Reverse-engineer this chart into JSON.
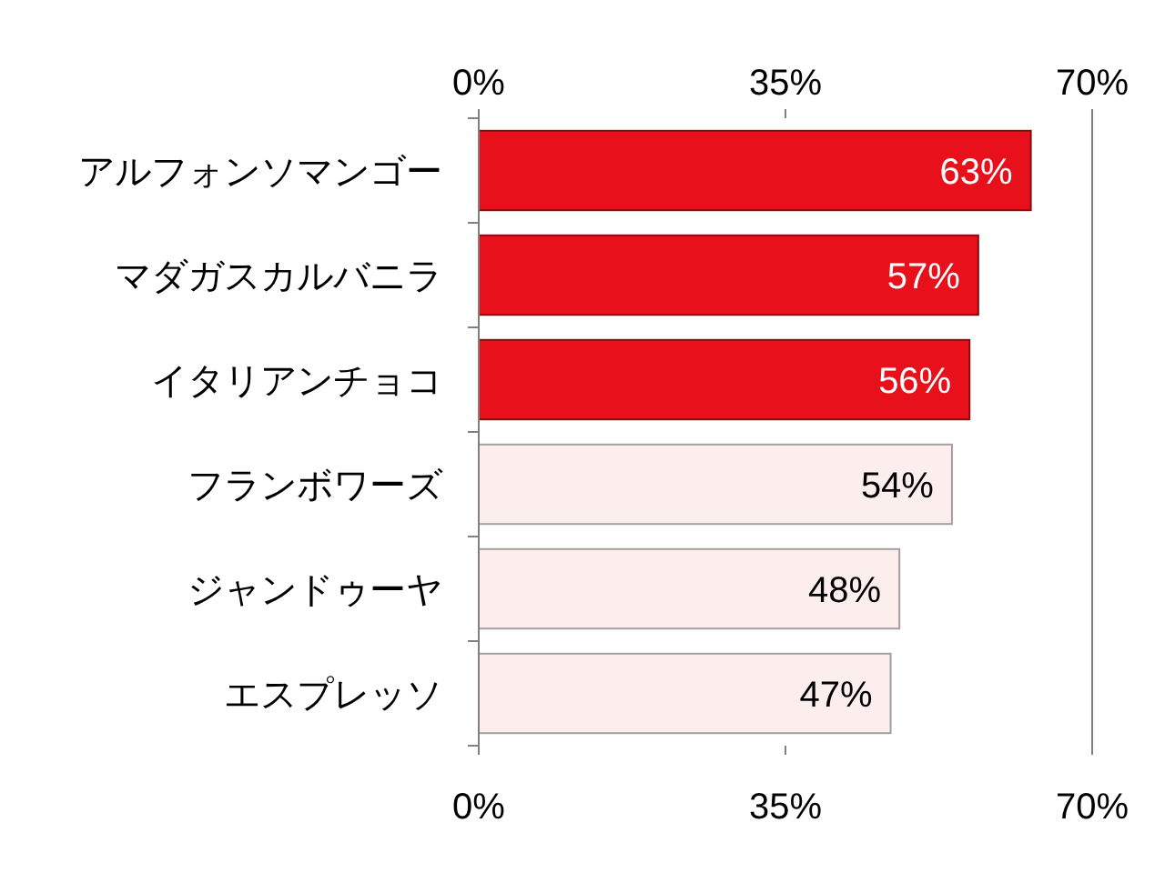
{
  "chart_data": {
    "type": "bar",
    "orientation": "horizontal",
    "categories": [
      "アルフォンソマンゴー",
      "マダガスカルバニラ",
      "イタリアンチョコ",
      "フランボワーズ",
      "ジャンドゥーヤ",
      "エスプレッソ"
    ],
    "values": [
      63,
      57,
      56,
      54,
      48,
      47
    ],
    "colors": [
      "#e8101a",
      "#e8101a",
      "#e8101a",
      "#fdeeee",
      "#fdeeee",
      "#fdeeee"
    ],
    "value_labels": [
      "63%",
      "57%",
      "56%",
      "54%",
      "48%",
      "47%"
    ],
    "xlim": [
      0,
      70
    ],
    "xticks": [
      {
        "value": 0,
        "label": "0%"
      },
      {
        "value": 35,
        "label": "35%"
      },
      {
        "value": 70,
        "label": "70%"
      }
    ],
    "x2lim": [
      0,
      70
    ],
    "x2ticks": [
      {
        "value": 0,
        "label": "0%"
      },
      {
        "value": 35,
        "label": "35%"
      },
      {
        "value": 70,
        "label": "70%"
      }
    ]
  }
}
